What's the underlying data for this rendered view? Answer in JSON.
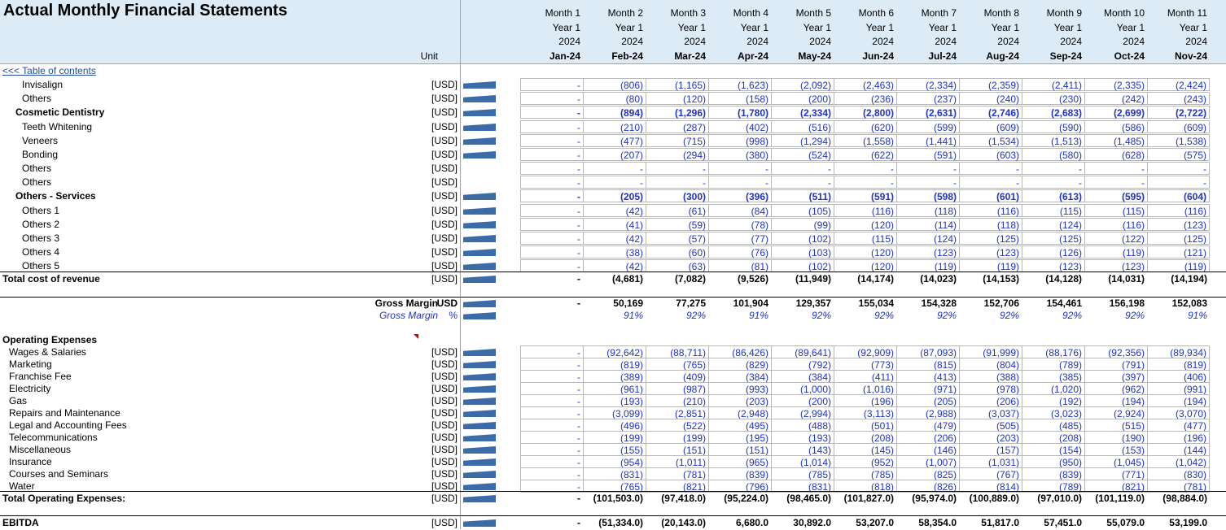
{
  "title": "Actual Monthly Financial Statements",
  "unit_header": "Unit",
  "toc_link": "<<< Table of contents",
  "months": [
    {
      "m": "Month 1",
      "y": "Year 1",
      "yr": "2024",
      "d": "Jan-24"
    },
    {
      "m": "Month 2",
      "y": "Year 1",
      "yr": "2024",
      "d": "Feb-24"
    },
    {
      "m": "Month 3",
      "y": "Year 1",
      "yr": "2024",
      "d": "Mar-24"
    },
    {
      "m": "Month 4",
      "y": "Year 1",
      "yr": "2024",
      "d": "Apr-24"
    },
    {
      "m": "Month 5",
      "y": "Year 1",
      "yr": "2024",
      "d": "May-24"
    },
    {
      "m": "Month 6",
      "y": "Year 1",
      "yr": "2024",
      "d": "Jun-24"
    },
    {
      "m": "Month 7",
      "y": "Year 1",
      "yr": "2024",
      "d": "Jul-24"
    },
    {
      "m": "Month 8",
      "y": "Year 1",
      "yr": "2024",
      "d": "Aug-24"
    },
    {
      "m": "Month 9",
      "y": "Year 1",
      "yr": "2024",
      "d": "Sep-24"
    },
    {
      "m": "Month 10",
      "y": "Year 1",
      "yr": "2024",
      "d": "Oct-24"
    },
    {
      "m": "Month 11",
      "y": "Year 1",
      "yr": "2024",
      "d": "Nov-24"
    }
  ],
  "rows": [
    {
      "label": "Invisalign",
      "indent": 27,
      "unit": "[USD]",
      "spark": true,
      "style": "inp",
      "top": 96,
      "values": [
        "-",
        "(806)",
        "(1,165)",
        "(1,623)",
        "(2,092)",
        "(2,463)",
        "(2,334)",
        "(2,359)",
        "(2,411)",
        "(2,335)",
        "(2,424)"
      ]
    },
    {
      "label": "Others",
      "indent": 27,
      "unit": "[USD]",
      "spark": true,
      "style": "inp",
      "top": 113,
      "values": [
        "-",
        "(80)",
        "(120)",
        "(158)",
        "(200)",
        "(236)",
        "(237)",
        "(240)",
        "(230)",
        "(242)",
        "(243)"
      ]
    },
    {
      "label": "Cosmetic Dentistry",
      "indent": 19,
      "unit": "[USD]",
      "spark": true,
      "style": "inp bold",
      "top": 130,
      "values": [
        "-",
        "(894)",
        "(1,296)",
        "(1,780)",
        "(2,334)",
        "(2,800)",
        "(2,631)",
        "(2,746)",
        "(2,683)",
        "(2,699)",
        "(2,722)"
      ]
    },
    {
      "label": "Teeth Whitening",
      "indent": 27,
      "unit": "[USD]",
      "spark": true,
      "style": "inp",
      "top": 148,
      "values": [
        "-",
        "(210)",
        "(287)",
        "(402)",
        "(516)",
        "(620)",
        "(599)",
        "(609)",
        "(590)",
        "(586)",
        "(609)"
      ]
    },
    {
      "label": "Veneers",
      "indent": 27,
      "unit": "[USD]",
      "spark": true,
      "style": "inp",
      "top": 165,
      "values": [
        "-",
        "(477)",
        "(715)",
        "(998)",
        "(1,294)",
        "(1,558)",
        "(1,441)",
        "(1,534)",
        "(1,513)",
        "(1,485)",
        "(1,538)"
      ]
    },
    {
      "label": "Bonding",
      "indent": 27,
      "unit": "[USD]",
      "spark": true,
      "style": "inp",
      "top": 182,
      "values": [
        "-",
        "(207)",
        "(294)",
        "(380)",
        "(524)",
        "(622)",
        "(591)",
        "(603)",
        "(580)",
        "(628)",
        "(575)"
      ]
    },
    {
      "label": "Others",
      "indent": 27,
      "unit": "[USD]",
      "spark": false,
      "style": "inp",
      "top": 199,
      "values": [
        "-",
        "-",
        "-",
        "-",
        "-",
        "-",
        "-",
        "-",
        "-",
        "-",
        "-"
      ]
    },
    {
      "label": "Others",
      "indent": 27,
      "unit": "[USD]",
      "spark": false,
      "style": "inp",
      "top": 216,
      "values": [
        "-",
        "-",
        "-",
        "-",
        "-",
        "-",
        "-",
        "-",
        "-",
        "-",
        "-"
      ]
    },
    {
      "label": "Others - Services",
      "indent": 19,
      "unit": "[USD]",
      "spark": true,
      "style": "inp bold",
      "top": 233,
      "values": [
        "-",
        "(205)",
        "(300)",
        "(396)",
        "(511)",
        "(591)",
        "(598)",
        "(601)",
        "(613)",
        "(595)",
        "(604)"
      ]
    },
    {
      "label": "Others 1",
      "indent": 27,
      "unit": "[USD]",
      "spark": true,
      "style": "inp",
      "top": 251,
      "values": [
        "-",
        "(42)",
        "(61)",
        "(84)",
        "(105)",
        "(116)",
        "(118)",
        "(116)",
        "(115)",
        "(115)",
        "(116)"
      ]
    },
    {
      "label": "Others 2",
      "indent": 27,
      "unit": "[USD]",
      "spark": true,
      "style": "inp",
      "top": 268,
      "values": [
        "-",
        "(41)",
        "(59)",
        "(78)",
        "(99)",
        "(120)",
        "(114)",
        "(118)",
        "(124)",
        "(116)",
        "(123)"
      ]
    },
    {
      "label": "Others 3",
      "indent": 27,
      "unit": "[USD]",
      "spark": true,
      "style": "inp",
      "top": 285,
      "values": [
        "-",
        "(42)",
        "(57)",
        "(77)",
        "(102)",
        "(115)",
        "(124)",
        "(125)",
        "(125)",
        "(122)",
        "(125)"
      ]
    },
    {
      "label": "Others 4",
      "indent": 27,
      "unit": "[USD]",
      "spark": true,
      "style": "inp",
      "top": 302,
      "values": [
        "-",
        "(38)",
        "(60)",
        "(76)",
        "(103)",
        "(120)",
        "(123)",
        "(123)",
        "(126)",
        "(119)",
        "(121)"
      ]
    },
    {
      "label": "Others 5",
      "indent": 27,
      "unit": "[USD]",
      "spark": true,
      "style": "inp",
      "top": 319,
      "values": [
        "-",
        "(42)",
        "(63)",
        "(81)",
        "(102)",
        "(120)",
        "(119)",
        "(119)",
        "(123)",
        "(123)",
        "(119)"
      ]
    },
    {
      "label": "Total cost of revenue",
      "indent": 3,
      "unit": "[USD]",
      "spark": true,
      "style": "bold",
      "top": 335,
      "values": [
        "-",
        "(4,681)",
        "(7,082)",
        "(9,526)",
        "(11,949)",
        "(14,174)",
        "(14,023)",
        "(14,153)",
        "(14,128)",
        "(14,031)",
        "(14,194)"
      ]
    },
    {
      "label": "Gross Margin",
      "indent": 0,
      "right": true,
      "unit": "USD",
      "spark": true,
      "style": "bold",
      "top": 365,
      "values": [
        "-",
        "50,169",
        "77,275",
        "101,904",
        "129,357",
        "155,034",
        "154,328",
        "152,706",
        "154,461",
        "156,198",
        "152,083"
      ]
    },
    {
      "label": "Gross Margin",
      "indent": 0,
      "right": true,
      "unit": "%",
      "spark": true,
      "style": "pct",
      "top": 380,
      "values": [
        "",
        "91%",
        "92%",
        "91%",
        "92%",
        "92%",
        "92%",
        "92%",
        "92%",
        "92%",
        "91%"
      ]
    },
    {
      "label": "Operating Expenses",
      "indent": 3,
      "unit": "",
      "spark": false,
      "style": "bold",
      "top": 410,
      "values": [
        "",
        "",
        "",
        "",
        "",
        "",
        "",
        "",
        "",
        "",
        ""
      ]
    },
    {
      "label": "Wages & Salaries",
      "indent": 11,
      "unit": "[USD]",
      "spark": true,
      "style": "inp",
      "top": 425,
      "values": [
        "-",
        "(92,642)",
        "(88,711)",
        "(86,426)",
        "(89,641)",
        "(92,909)",
        "(87,093)",
        "(91,999)",
        "(88,176)",
        "(92,356)",
        "(89,934)"
      ]
    },
    {
      "label": "Marketing",
      "indent": 11,
      "unit": "[USD]",
      "spark": true,
      "style": "inp",
      "top": 440,
      "values": [
        "-",
        "(819)",
        "(765)",
        "(829)",
        "(792)",
        "(773)",
        "(815)",
        "(804)",
        "(789)",
        "(791)",
        "(819)"
      ]
    },
    {
      "label": "Franchise Fee",
      "indent": 11,
      "unit": "[USD]",
      "spark": true,
      "style": "inp",
      "top": 455,
      "values": [
        "-",
        "(389)",
        "(409)",
        "(384)",
        "(384)",
        "(411)",
        "(413)",
        "(388)",
        "(385)",
        "(397)",
        "(406)"
      ]
    },
    {
      "label": "Electricity",
      "indent": 11,
      "unit": "[USD]",
      "spark": true,
      "style": "inp",
      "top": 470,
      "values": [
        "-",
        "(961)",
        "(987)",
        "(993)",
        "(1,000)",
        "(1,016)",
        "(971)",
        "(978)",
        "(1,020)",
        "(962)",
        "(991)"
      ]
    },
    {
      "label": "Gas",
      "indent": 11,
      "unit": "[USD]",
      "spark": true,
      "style": "inp",
      "top": 485,
      "values": [
        "-",
        "(193)",
        "(210)",
        "(203)",
        "(200)",
        "(196)",
        "(205)",
        "(206)",
        "(192)",
        "(194)",
        "(194)"
      ]
    },
    {
      "label": "Repairs and Maintenance",
      "indent": 11,
      "unit": "[USD]",
      "spark": true,
      "style": "inp",
      "top": 500,
      "values": [
        "-",
        "(3,099)",
        "(2,851)",
        "(2,948)",
        "(2,994)",
        "(3,113)",
        "(2,988)",
        "(3,037)",
        "(3,023)",
        "(2,924)",
        "(3,070)"
      ]
    },
    {
      "label": "Legal and Accounting Fees",
      "indent": 11,
      "unit": "[USD]",
      "spark": true,
      "style": "inp",
      "top": 515,
      "values": [
        "-",
        "(496)",
        "(522)",
        "(495)",
        "(488)",
        "(501)",
        "(479)",
        "(505)",
        "(485)",
        "(515)",
        "(477)"
      ]
    },
    {
      "label": "Telecommunications",
      "indent": 11,
      "unit": "[USD]",
      "spark": true,
      "style": "inp",
      "top": 530,
      "values": [
        "-",
        "(199)",
        "(199)",
        "(195)",
        "(193)",
        "(208)",
        "(206)",
        "(203)",
        "(208)",
        "(190)",
        "(196)"
      ]
    },
    {
      "label": "Miscellaneous",
      "indent": 11,
      "unit": "[USD]",
      "spark": true,
      "style": "inp",
      "top": 545,
      "values": [
        "-",
        "(155)",
        "(151)",
        "(151)",
        "(143)",
        "(145)",
        "(146)",
        "(157)",
        "(154)",
        "(153)",
        "(144)"
      ]
    },
    {
      "label": "Insurance",
      "indent": 11,
      "unit": "[USD]",
      "spark": true,
      "style": "inp",
      "top": 560,
      "values": [
        "-",
        "(954)",
        "(1,011)",
        "(965)",
        "(1,014)",
        "(952)",
        "(1,007)",
        "(1,031)",
        "(950)",
        "(1,045)",
        "(1,042)"
      ]
    },
    {
      "label": "Courses and Seminars",
      "indent": 11,
      "unit": "[USD]",
      "spark": true,
      "style": "inp",
      "top": 575,
      "values": [
        "-",
        "(831)",
        "(781)",
        "(839)",
        "(785)",
        "(785)",
        "(825)",
        "(767)",
        "(839)",
        "(771)",
        "(830)"
      ]
    },
    {
      "label": "Water",
      "indent": 11,
      "unit": "[USD]",
      "spark": true,
      "style": "inp",
      "top": 590,
      "values": [
        "-",
        "(765)",
        "(821)",
        "(796)",
        "(831)",
        "(818)",
        "(826)",
        "(814)",
        "(789)",
        "(821)",
        "(781)"
      ]
    },
    {
      "label": "Total Operating Expenses:",
      "indent": 3,
      "unit": "[USD]",
      "spark": true,
      "style": "bold",
      "top": 605,
      "values": [
        "-",
        "(101,503.0)",
        "(97,418.0)",
        "(95,224.0)",
        "(98,465.0)",
        "(101,827.0)",
        "(95,974.0)",
        "(100,889.0)",
        "(97,010.0)",
        "(101,119.0)",
        "(98,884.0)"
      ]
    },
    {
      "label": "EBITDA",
      "indent": 3,
      "unit": "[USD]",
      "spark": true,
      "style": "bold",
      "top": 635,
      "values": [
        "-",
        "(51,334.0)",
        "(20,143.0)",
        "6,680.0",
        "30,892.0",
        "53,207.0",
        "58,354.0",
        "51,817.0",
        "57,451.0",
        "55,079.0",
        "53,199.0"
      ]
    }
  ]
}
